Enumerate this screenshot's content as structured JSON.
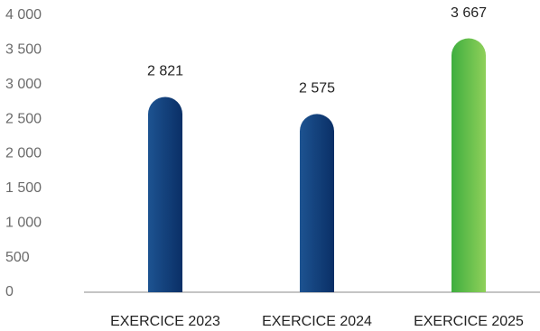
{
  "chart_data": {
    "type": "bar",
    "title": "",
    "xlabel": "",
    "ylabel": "",
    "categories": [
      "EXERCICE 2023",
      "EXERCICE 2024",
      "EXERCICE 2025"
    ],
    "values": [
      2821,
      2575,
      3667
    ],
    "data_labels": [
      "2 821",
      "2 575",
      "3 667"
    ],
    "ylim": [
      0,
      4000
    ],
    "y_ticks": [
      0,
      500,
      1000,
      1500,
      2000,
      2500,
      3000,
      3500,
      4000
    ],
    "y_tick_labels": [
      "0",
      "500",
      "1 000",
      "1 500",
      "2 000",
      "2 500",
      "3 000",
      "3 500",
      "4 000"
    ],
    "grid": false,
    "legend": "none",
    "bar_colors": [
      {
        "from": "#1d5391",
        "to": "#0a2f66"
      },
      {
        "from": "#1d5391",
        "to": "#0a2f66"
      },
      {
        "from": "#3fae3f",
        "to": "#8fd05a"
      }
    ],
    "axis_color": "#8a8a8a"
  }
}
